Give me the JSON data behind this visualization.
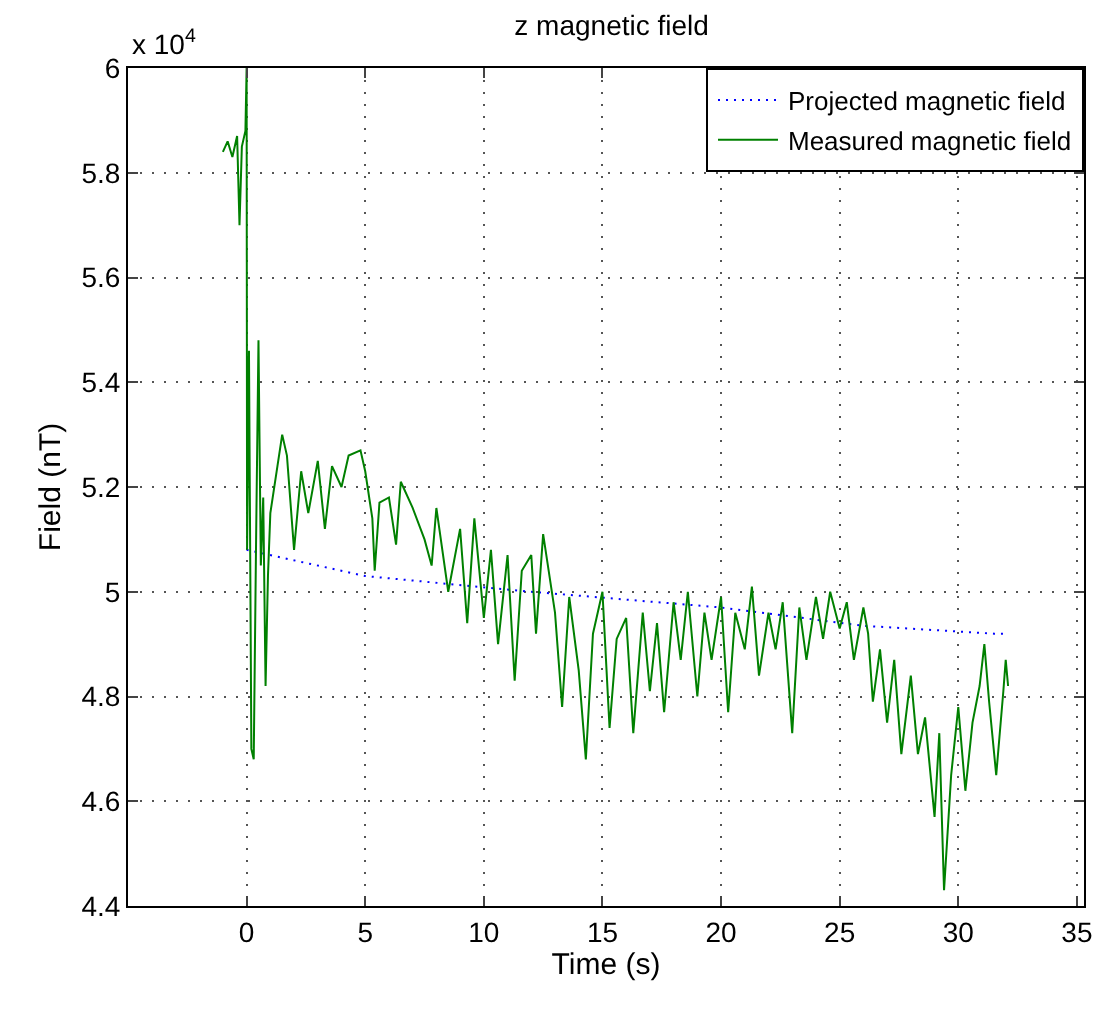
{
  "chart_data": {
    "type": "line",
    "title": "z magnetic field",
    "xlabel": "Time (s)",
    "ylabel": "Field (nT)",
    "annotations": [
      "x 10$^{4}$"
    ],
    "xlim": [
      -5,
      35.3
    ],
    "xticks": [
      0,
      5,
      10,
      15,
      20,
      25,
      30,
      35
    ],
    "ylim": [
      4.4,
      6
    ],
    "yticks": [
      4.4,
      4.6,
      4.8,
      5,
      5.2,
      5.4,
      5.6,
      5.8,
      6
    ],
    "grid": true,
    "legend": "top right",
    "marker": "none",
    "series": [
      {
        "name": "Projected magnetic field",
        "color": "#0000ff",
        "line_style": "dotted",
        "x": [
          0,
          5,
          12,
          20,
          26,
          31.5,
          32
        ],
        "values": [
          5.08,
          5.03,
          5.0,
          4.97,
          4.935,
          4.92,
          4.92
        ]
      },
      {
        "name": "Measured magnetic field",
        "color": "#008000",
        "line_style": "solid",
        "x": [
          -1.0,
          -0.8,
          -0.6,
          -0.4,
          -0.3,
          -0.2,
          -0.05,
          0,
          0.02,
          0.1,
          0.2,
          0.3,
          0.4,
          0.5,
          0.6,
          0.7,
          0.8,
          0.9,
          1.0,
          1.3,
          1.5,
          1.7,
          2.0,
          2.3,
          2.6,
          3.0,
          3.3,
          3.6,
          4.0,
          4.3,
          4.8,
          5.0,
          5.3,
          5.4,
          5.6,
          6.0,
          6.3,
          6.5,
          7.0,
          7.5,
          7.8,
          8.0,
          8.5,
          9.0,
          9.3,
          9.6,
          10.0,
          10.3,
          10.6,
          11.0,
          11.3,
          11.6,
          12.0,
          12.2,
          12.5,
          13.0,
          13.3,
          13.6,
          14.0,
          14.3,
          14.6,
          15.0,
          15.3,
          15.6,
          16.0,
          16.3,
          16.7,
          17.0,
          17.3,
          17.6,
          18.0,
          18.3,
          18.6,
          19.0,
          19.3,
          19.6,
          20.0,
          20.3,
          20.6,
          21.0,
          21.3,
          21.6,
          22.0,
          22.3,
          22.6,
          23.0,
          23.3,
          23.6,
          24.0,
          24.3,
          24.6,
          25.0,
          25.3,
          25.6,
          26.0,
          26.2,
          26.4,
          26.7,
          27.0,
          27.3,
          27.6,
          28.0,
          28.3,
          28.6,
          29.0,
          29.2,
          29.4,
          29.7,
          30.0,
          30.3,
          30.6,
          30.9,
          31.1,
          31.3,
          31.6,
          31.9,
          32.0,
          32.1
        ],
        "values": [
          5.84,
          5.86,
          5.83,
          5.87,
          5.7,
          5.85,
          5.88,
          6.0,
          5.08,
          5.46,
          4.7,
          4.68,
          5.1,
          5.48,
          5.05,
          5.18,
          4.82,
          5.03,
          5.15,
          5.24,
          5.3,
          5.26,
          5.08,
          5.23,
          5.15,
          5.25,
          5.12,
          5.24,
          5.2,
          5.26,
          5.27,
          5.23,
          5.14,
          5.04,
          5.17,
          5.18,
          5.09,
          5.21,
          5.16,
          5.1,
          5.05,
          5.16,
          5.0,
          5.12,
          4.94,
          5.14,
          4.95,
          5.08,
          4.9,
          5.07,
          4.83,
          5.04,
          5.07,
          4.92,
          5.11,
          4.96,
          4.78,
          4.99,
          4.85,
          4.68,
          4.92,
          5.0,
          4.74,
          4.91,
          4.95,
          4.73,
          4.96,
          4.81,
          4.94,
          4.77,
          4.98,
          4.87,
          5.0,
          4.8,
          4.96,
          4.87,
          4.99,
          4.77,
          4.96,
          4.89,
          5.01,
          4.84,
          4.96,
          4.89,
          4.98,
          4.73,
          4.97,
          4.87,
          4.99,
          4.91,
          5.0,
          4.93,
          4.98,
          4.87,
          4.97,
          4.92,
          4.79,
          4.89,
          4.75,
          4.87,
          4.69,
          4.84,
          4.69,
          4.76,
          4.57,
          4.73,
          4.43,
          4.65,
          4.78,
          4.62,
          4.75,
          4.82,
          4.9,
          4.79,
          4.65,
          4.81,
          4.87,
          4.82
        ]
      }
    ]
  }
}
